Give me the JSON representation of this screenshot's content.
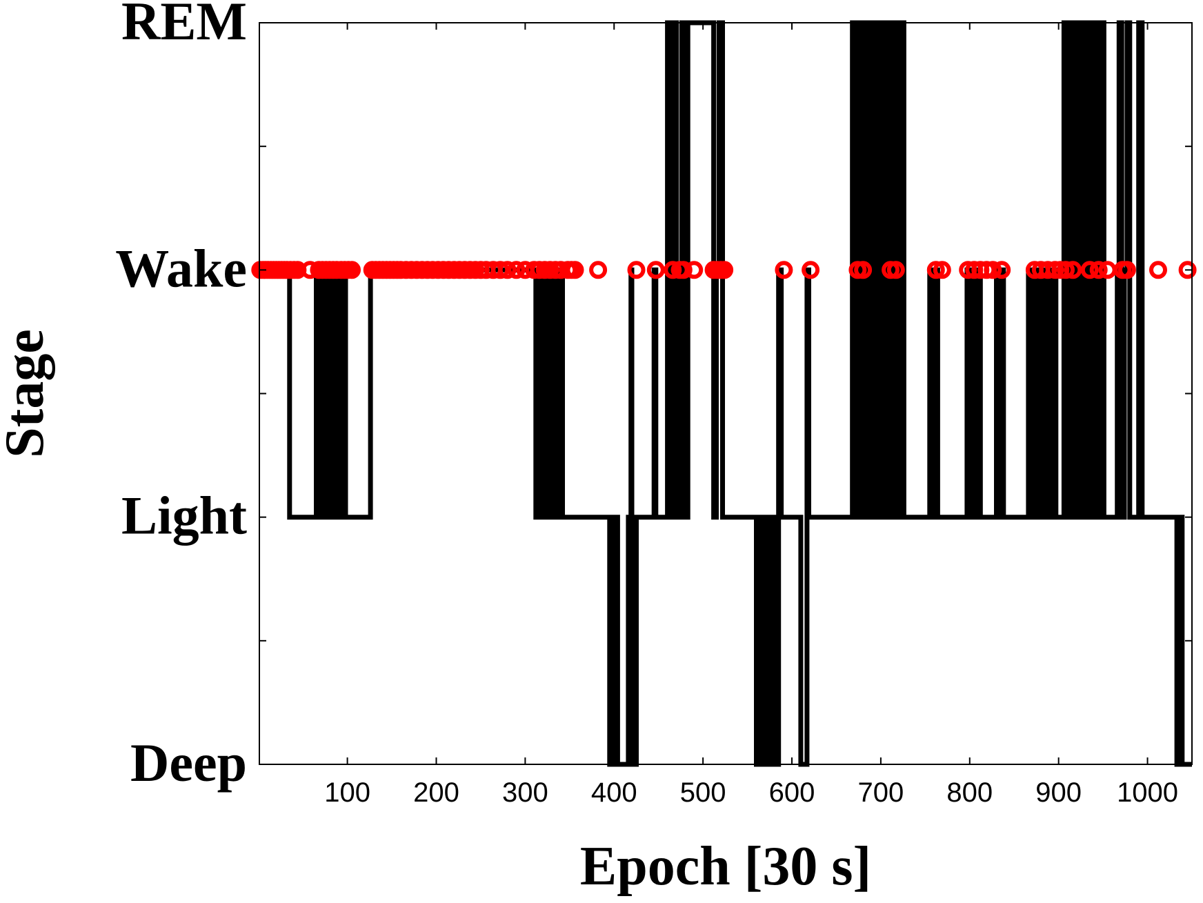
{
  "chart_data": {
    "type": "line",
    "xlabel": "Epoch [30 s]",
    "ylabel": "Stage",
    "xlim": [
      1,
      1050
    ],
    "ylim": [
      0,
      3
    ],
    "x_ticks": [
      100,
      200,
      300,
      400,
      500,
      600,
      700,
      800,
      900,
      1000
    ],
    "y_tick_values": [
      0,
      1,
      2,
      3
    ],
    "y_tick_labels": [
      "Deep",
      "Light",
      "Wake",
      "REM"
    ],
    "y_minor_ticks": [
      0.5,
      1.5,
      2.5
    ],
    "grid": false,
    "legend": "none",
    "colors": {
      "hypnogram": "#000000",
      "markers": "#ff0000"
    },
    "series": [
      {
        "type": "step",
        "points": [
          [
            1,
            2
          ],
          [
            35,
            2
          ],
          [
            35,
            1
          ],
          [
            65,
            1
          ],
          [
            65,
            2
          ],
          [
            68,
            2
          ],
          [
            68,
            1
          ],
          [
            71,
            1
          ],
          [
            71,
            2
          ],
          [
            73,
            2
          ],
          [
            73,
            1
          ],
          [
            76,
            1
          ],
          [
            76,
            2
          ],
          [
            78,
            2
          ],
          [
            78,
            1
          ],
          [
            81,
            1
          ],
          [
            81,
            2
          ],
          [
            83,
            2
          ],
          [
            83,
            1
          ],
          [
            86,
            1
          ],
          [
            86,
            2
          ],
          [
            88,
            2
          ],
          [
            88,
            1
          ],
          [
            91,
            1
          ],
          [
            91,
            2
          ],
          [
            93,
            2
          ],
          [
            93,
            1
          ],
          [
            96,
            1
          ],
          [
            96,
            2
          ],
          [
            98,
            2
          ],
          [
            98,
            1
          ],
          [
            126,
            1
          ],
          [
            126,
            2
          ],
          [
            312,
            2
          ],
          [
            312,
            1
          ],
          [
            315,
            1
          ],
          [
            315,
            2
          ],
          [
            318,
            2
          ],
          [
            318,
            1
          ],
          [
            321,
            1
          ],
          [
            321,
            2
          ],
          [
            324,
            2
          ],
          [
            324,
            1
          ],
          [
            327,
            1
          ],
          [
            327,
            2
          ],
          [
            330,
            2
          ],
          [
            330,
            1
          ],
          [
            333,
            1
          ],
          [
            333,
            2
          ],
          [
            336,
            2
          ],
          [
            336,
            1
          ],
          [
            339,
            1
          ],
          [
            339,
            2
          ],
          [
            342,
            2
          ],
          [
            342,
            1
          ],
          [
            395,
            1
          ],
          [
            395,
            0
          ],
          [
            400,
            0
          ],
          [
            400,
            1
          ],
          [
            404,
            1
          ],
          [
            404,
            0
          ],
          [
            416,
            0
          ],
          [
            416,
            1
          ],
          [
            419,
            1
          ],
          [
            419,
            2
          ],
          [
            420,
            2
          ],
          [
            420,
            0
          ],
          [
            425,
            0
          ],
          [
            425,
            1
          ],
          [
            445,
            1
          ],
          [
            445,
            2
          ],
          [
            447,
            2
          ],
          [
            447,
            1
          ],
          [
            460,
            1
          ],
          [
            460,
            3
          ],
          [
            463,
            3
          ],
          [
            463,
            1
          ],
          [
            466,
            1
          ],
          [
            466,
            3
          ],
          [
            470,
            3
          ],
          [
            470,
            1
          ],
          [
            473,
            1
          ],
          [
            473,
            2
          ],
          [
            476,
            2
          ],
          [
            476,
            3
          ],
          [
            478,
            3
          ],
          [
            478,
            1
          ],
          [
            483,
            1
          ],
          [
            483,
            3
          ],
          [
            512,
            3
          ],
          [
            512,
            1
          ],
          [
            515,
            1
          ],
          [
            515,
            2
          ],
          [
            518,
            2
          ],
          [
            518,
            3
          ],
          [
            522,
            3
          ],
          [
            522,
            1
          ],
          [
            560,
            1
          ],
          [
            560,
            0
          ],
          [
            565,
            0
          ],
          [
            565,
            1
          ],
          [
            567,
            1
          ],
          [
            567,
            0
          ],
          [
            572,
            0
          ],
          [
            572,
            1
          ],
          [
            575,
            1
          ],
          [
            575,
            0
          ],
          [
            580,
            0
          ],
          [
            580,
            1
          ],
          [
            583,
            1
          ],
          [
            583,
            0
          ],
          [
            585,
            0
          ],
          [
            585,
            2
          ],
          [
            588,
            2
          ],
          [
            588,
            1
          ],
          [
            610,
            1
          ],
          [
            610,
            0
          ],
          [
            617,
            0
          ],
          [
            617,
            2
          ],
          [
            619,
            2
          ],
          [
            619,
            1
          ],
          [
            668,
            1
          ],
          [
            668,
            3
          ],
          [
            670,
            3
          ],
          [
            670,
            1
          ],
          [
            672,
            1
          ],
          [
            672,
            3
          ],
          [
            674,
            3
          ],
          [
            674,
            1
          ],
          [
            676,
            1
          ],
          [
            676,
            3
          ],
          [
            678,
            3
          ],
          [
            678,
            1
          ],
          [
            680,
            1
          ],
          [
            680,
            3
          ],
          [
            682,
            3
          ],
          [
            682,
            1
          ],
          [
            684,
            1
          ],
          [
            684,
            3
          ],
          [
            686,
            3
          ],
          [
            686,
            1
          ],
          [
            688,
            1
          ],
          [
            688,
            3
          ],
          [
            690,
            3
          ],
          [
            690,
            1
          ],
          [
            692,
            1
          ],
          [
            692,
            3
          ],
          [
            694,
            3
          ],
          [
            694,
            1
          ],
          [
            696,
            1
          ],
          [
            696,
            3
          ],
          [
            698,
            3
          ],
          [
            698,
            1
          ],
          [
            700,
            1
          ],
          [
            700,
            3
          ],
          [
            702,
            3
          ],
          [
            702,
            1
          ],
          [
            704,
            1
          ],
          [
            704,
            3
          ],
          [
            706,
            3
          ],
          [
            706,
            1
          ],
          [
            708,
            1
          ],
          [
            708,
            3
          ],
          [
            710,
            3
          ],
          [
            710,
            1
          ],
          [
            712,
            1
          ],
          [
            712,
            2
          ],
          [
            714,
            2
          ],
          [
            714,
            3
          ],
          [
            716,
            3
          ],
          [
            716,
            1
          ],
          [
            718,
            1
          ],
          [
            718,
            3
          ],
          [
            721,
            3
          ],
          [
            721,
            1
          ],
          [
            723,
            1
          ],
          [
            723,
            3
          ],
          [
            726,
            3
          ],
          [
            726,
            1
          ],
          [
            755,
            1
          ],
          [
            755,
            2
          ],
          [
            758,
            2
          ],
          [
            758,
            1
          ],
          [
            761,
            1
          ],
          [
            761,
            2
          ],
          [
            764,
            2
          ],
          [
            764,
            1
          ],
          [
            797,
            1
          ],
          [
            797,
            2
          ],
          [
            800,
            2
          ],
          [
            800,
            1
          ],
          [
            803,
            1
          ],
          [
            803,
            2
          ],
          [
            806,
            2
          ],
          [
            806,
            1
          ],
          [
            809,
            1
          ],
          [
            809,
            2
          ],
          [
            812,
            2
          ],
          [
            812,
            1
          ],
          [
            830,
            1
          ],
          [
            830,
            2
          ],
          [
            833,
            2
          ],
          [
            833,
            1
          ],
          [
            836,
            1
          ],
          [
            836,
            2
          ],
          [
            838,
            2
          ],
          [
            838,
            1
          ],
          [
            866,
            1
          ],
          [
            866,
            2
          ],
          [
            869,
            2
          ],
          [
            869,
            1
          ],
          [
            872,
            1
          ],
          [
            872,
            2
          ],
          [
            875,
            2
          ],
          [
            875,
            1
          ],
          [
            878,
            1
          ],
          [
            878,
            2
          ],
          [
            881,
            2
          ],
          [
            881,
            1
          ],
          [
            884,
            1
          ],
          [
            884,
            2
          ],
          [
            886,
            2
          ],
          [
            886,
            1
          ],
          [
            889,
            1
          ],
          [
            889,
            2
          ],
          [
            891,
            2
          ],
          [
            891,
            1
          ],
          [
            894,
            1
          ],
          [
            894,
            2
          ],
          [
            897,
            2
          ],
          [
            897,
            1
          ],
          [
            906,
            1
          ],
          [
            906,
            3
          ],
          [
            909,
            3
          ],
          [
            909,
            1
          ],
          [
            911,
            1
          ],
          [
            911,
            3
          ],
          [
            914,
            3
          ],
          [
            914,
            1
          ],
          [
            916,
            1
          ],
          [
            916,
            3
          ],
          [
            919,
            3
          ],
          [
            919,
            2
          ],
          [
            921,
            2
          ],
          [
            921,
            1
          ],
          [
            923,
            1
          ],
          [
            923,
            3
          ],
          [
            925,
            3
          ],
          [
            925,
            1
          ],
          [
            928,
            1
          ],
          [
            928,
            3
          ],
          [
            931,
            3
          ],
          [
            931,
            2
          ],
          [
            933,
            2
          ],
          [
            933,
            1
          ],
          [
            935,
            1
          ],
          [
            935,
            3
          ],
          [
            938,
            3
          ],
          [
            938,
            1
          ],
          [
            941,
            1
          ],
          [
            941,
            3
          ],
          [
            944,
            3
          ],
          [
            944,
            1
          ],
          [
            947,
            1
          ],
          [
            947,
            3
          ],
          [
            951,
            3
          ],
          [
            951,
            1
          ],
          [
            966,
            1
          ],
          [
            966,
            2
          ],
          [
            968,
            2
          ],
          [
            968,
            3
          ],
          [
            971,
            3
          ],
          [
            971,
            1
          ],
          [
            974,
            1
          ],
          [
            974,
            2
          ],
          [
            977,
            2
          ],
          [
            977,
            3
          ],
          [
            980,
            3
          ],
          [
            980,
            1
          ],
          [
            990,
            1
          ],
          [
            990,
            3
          ],
          [
            994,
            3
          ],
          [
            994,
            1
          ],
          [
            1033,
            1
          ],
          [
            1033,
            0
          ],
          [
            1036,
            0
          ],
          [
            1036,
            1
          ],
          [
            1039,
            1
          ],
          [
            1039,
            0
          ],
          [
            1050,
            0
          ]
        ]
      },
      {
        "type": "scatter",
        "marker": "circle",
        "y_value": 2,
        "x": [
          2,
          5,
          8,
          11,
          14,
          17,
          20,
          23,
          26,
          29,
          32,
          36,
          40,
          44,
          58,
          68,
          72,
          76,
          80,
          84,
          88,
          93,
          97,
          101,
          105,
          128,
          132,
          136,
          140,
          144,
          148,
          152,
          156,
          160,
          166,
          172,
          178,
          184,
          190,
          196,
          202,
          208,
          214,
          220,
          226,
          232,
          238,
          244,
          250,
          256,
          264,
          272,
          280,
          290,
          300,
          310,
          316,
          322,
          328,
          334,
          340,
          348,
          352,
          356,
          382,
          425,
          447,
          466,
          474,
          478,
          490,
          512,
          516,
          520,
          524,
          591,
          621,
          674,
          680,
          711,
          717,
          762,
          769,
          798,
          805,
          812,
          819,
          826,
          836,
          873,
          880,
          888,
          896,
          902,
          908,
          916,
          935,
          945,
          955,
          972,
          977,
          1012,
          1045
        ]
      }
    ]
  }
}
